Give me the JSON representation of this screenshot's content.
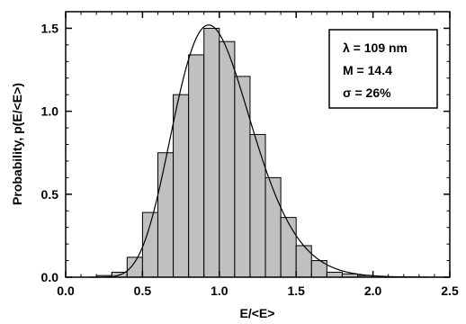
{
  "chart_data": {
    "type": "bar",
    "xlabel": "E/<E>",
    "ylabel": "Probability, p(E/<E>)",
    "xlim": [
      0.0,
      2.5
    ],
    "ylim": [
      0.0,
      1.6
    ],
    "x_ticks": [
      "0.0",
      "0.5",
      "1.0",
      "1.5",
      "2.0",
      "2.5"
    ],
    "y_ticks": [
      "0.0",
      "0.5",
      "1.0",
      "1.5"
    ],
    "grid": false,
    "bin_width": 0.1,
    "bin_starts": [
      0.2,
      0.3,
      0.4,
      0.5,
      0.6,
      0.7,
      0.8,
      0.9,
      1.0,
      1.1,
      1.2,
      1.3,
      1.4,
      1.5,
      1.6,
      1.7,
      1.8,
      1.9
    ],
    "values": [
      0.01,
      0.03,
      0.12,
      0.39,
      0.75,
      1.1,
      1.34,
      1.5,
      1.42,
      1.21,
      0.86,
      0.6,
      0.36,
      0.19,
      0.1,
      0.03,
      0.02,
      0.01
    ],
    "fit_curve": {
      "type": "gamma",
      "M": 14.4,
      "peak_y": 1.52,
      "peak_x": 0.93
    },
    "legend": {
      "placement": "top-right",
      "lines": [
        "λ = 109 nm",
        "M = 14.4",
        "σ = 26%"
      ]
    }
  }
}
